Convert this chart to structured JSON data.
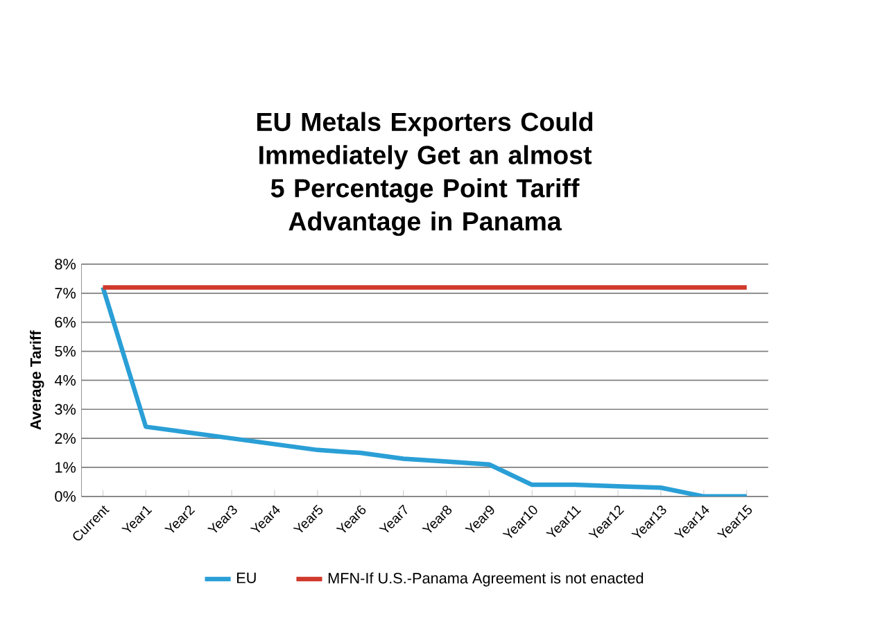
{
  "chart_data": {
    "type": "line",
    "title": "EU Metals Exporters Could Immediately Get an almost 5 Percentage Point Tariff Advantage in Panama",
    "ylabel": "Average Tariff",
    "categories": [
      "Current",
      "Year1",
      "Year2",
      "Year3",
      "Year4",
      "Year5",
      "Year6",
      "Year7",
      "Year8",
      "Year9",
      "Year10",
      "Year11",
      "Year12",
      "Year13",
      "Year14",
      "Year15"
    ],
    "series": [
      {
        "name": "EU",
        "color": "#2a9fd6",
        "values": [
          7.2,
          2.4,
          2.2,
          2.0,
          1.8,
          1.6,
          1.5,
          1.3,
          1.2,
          1.1,
          0.4,
          0.4,
          0.35,
          0.3,
          0,
          0
        ]
      },
      {
        "name": "MFN-If U.S.-Panama Agreement is not enacted",
        "color": "#d0392b",
        "values": [
          7.2,
          7.2,
          7.2,
          7.2,
          7.2,
          7.2,
          7.2,
          7.2,
          7.2,
          7.2,
          7.2,
          7.2,
          7.2,
          7.2,
          7.2,
          7.2
        ]
      }
    ],
    "ylim": [
      0,
      8
    ],
    "yticks": [
      {
        "value": 0,
        "label": "0%"
      },
      {
        "value": 1,
        "label": "1%"
      },
      {
        "value": 2,
        "label": "2%"
      },
      {
        "value": 3,
        "label": "3%"
      },
      {
        "value": 4,
        "label": "4%"
      },
      {
        "value": 5,
        "label": "5%"
      },
      {
        "value": 6,
        "label": "6%"
      },
      {
        "value": 7,
        "label": "7%"
      },
      {
        "value": 8,
        "label": "8%"
      }
    ],
    "grid": "y",
    "legend": "bottom",
    "marker": "none",
    "line_style": "solid"
  }
}
